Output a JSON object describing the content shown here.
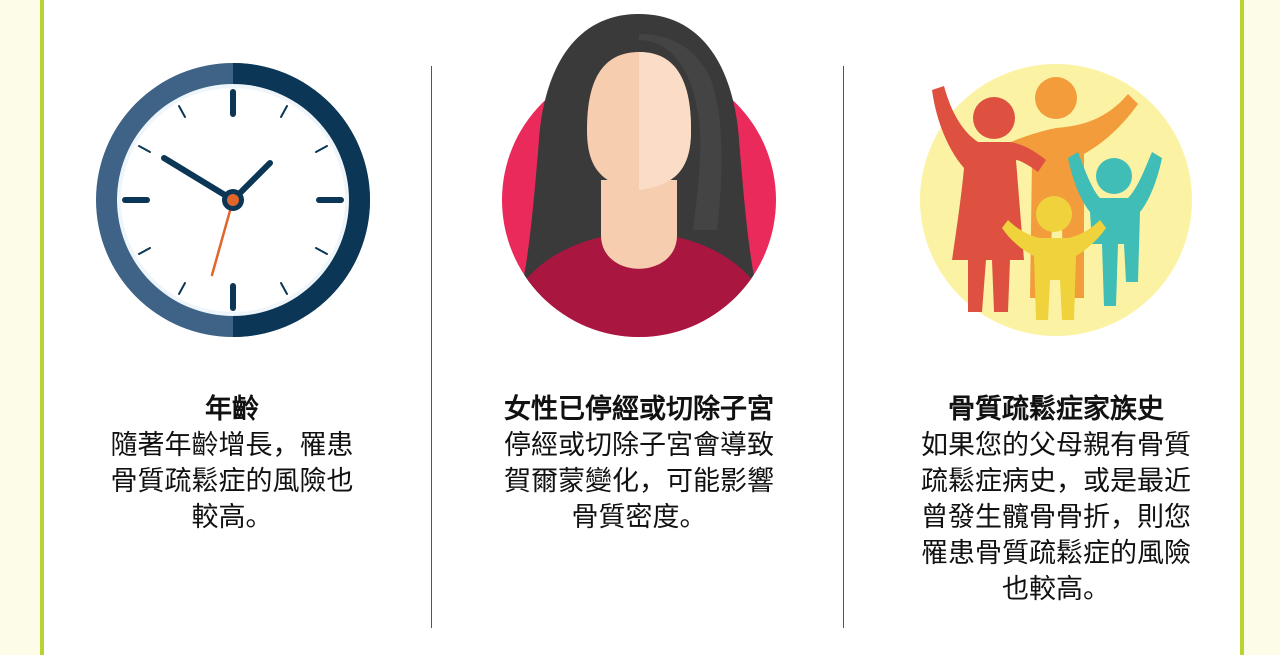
{
  "colors": {
    "border": "#b9d432",
    "clock_ring": "#2c4f70",
    "clock_ring_light": "#3e6386",
    "clock_hand": "#0b3656",
    "second_hand": "#e0662c",
    "woman_circle": "#ea2a5b",
    "woman_shirt": "#a91740",
    "family_circle": "#fbf3a3"
  },
  "columns": [
    {
      "icon": "clock-icon",
      "title": "年齡",
      "lines": [
        "隨著年齡增長，罹患",
        "骨質疏鬆症的風險也",
        "較高。"
      ]
    },
    {
      "icon": "woman-icon",
      "title": "女性已停經或切除子宮",
      "lines": [
        "停經或切除子宮會導致",
        "賀爾蒙變化，可能影響",
        "骨質密度。"
      ]
    },
    {
      "icon": "family-icon",
      "title": "骨質疏鬆症家族史",
      "lines": [
        "如果您的父母親有骨質",
        "疏鬆症病史，或是最近",
        "曾發生髖骨骨折，則您",
        "罹患骨質疏鬆症的風險",
        "也較高。"
      ]
    }
  ]
}
